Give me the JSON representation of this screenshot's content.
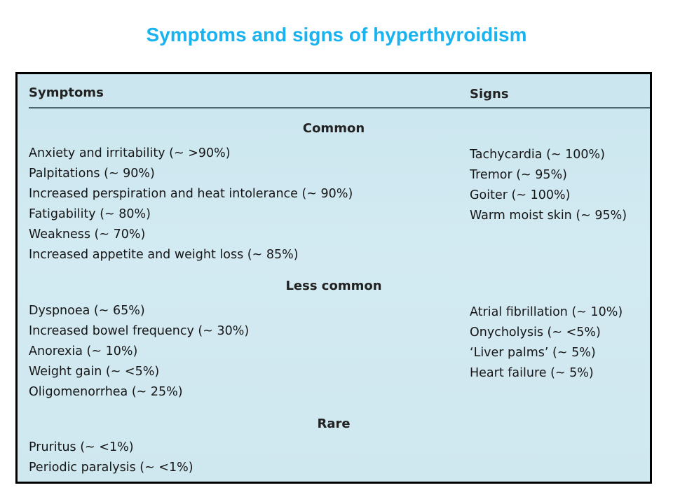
{
  "title": "Symptoms and signs of hyperthyroidism",
  "table": {
    "symptoms_header": "Symptoms",
    "signs_header": "Signs",
    "sections": [
      {
        "name": "Common",
        "symptoms": [
          "Anxiety and irritability (~ >90%)",
          "Palpitations (~ 90%)",
          "Increased perspiration and heat intolerance (~ 90%)",
          "Fatigability (~ 80%)",
          "Weakness (~ 70%)",
          "Increased appetite and weight loss (~ 85%)"
        ],
        "signs": [
          "Tachycardia (~ 100%)",
          "Tremor (~ 95%)",
          "Goiter (~ 100%)",
          "Warm moist skin (~ 95%)"
        ]
      },
      {
        "name": "Less common",
        "symptoms": [
          "Dyspnoea (~ 65%)",
          "Increased bowel frequency (~ 30%)",
          "Anorexia (~ 10%)",
          "Weight gain (~ <5%)",
          "Oligomenorrhea (~ 25%)"
        ],
        "signs": [
          "Atrial fibrillation (~ 10%)",
          "Onycholysis (~ <5%)",
          "‘Liver palms’ (~ 5%)",
          "Heart failure (~ 5%)"
        ]
      },
      {
        "name": "Rare",
        "symptoms": [
          "Pruritus (~ <1%)",
          "Periodic paralysis (~ <1%)"
        ],
        "signs": []
      }
    ]
  }
}
